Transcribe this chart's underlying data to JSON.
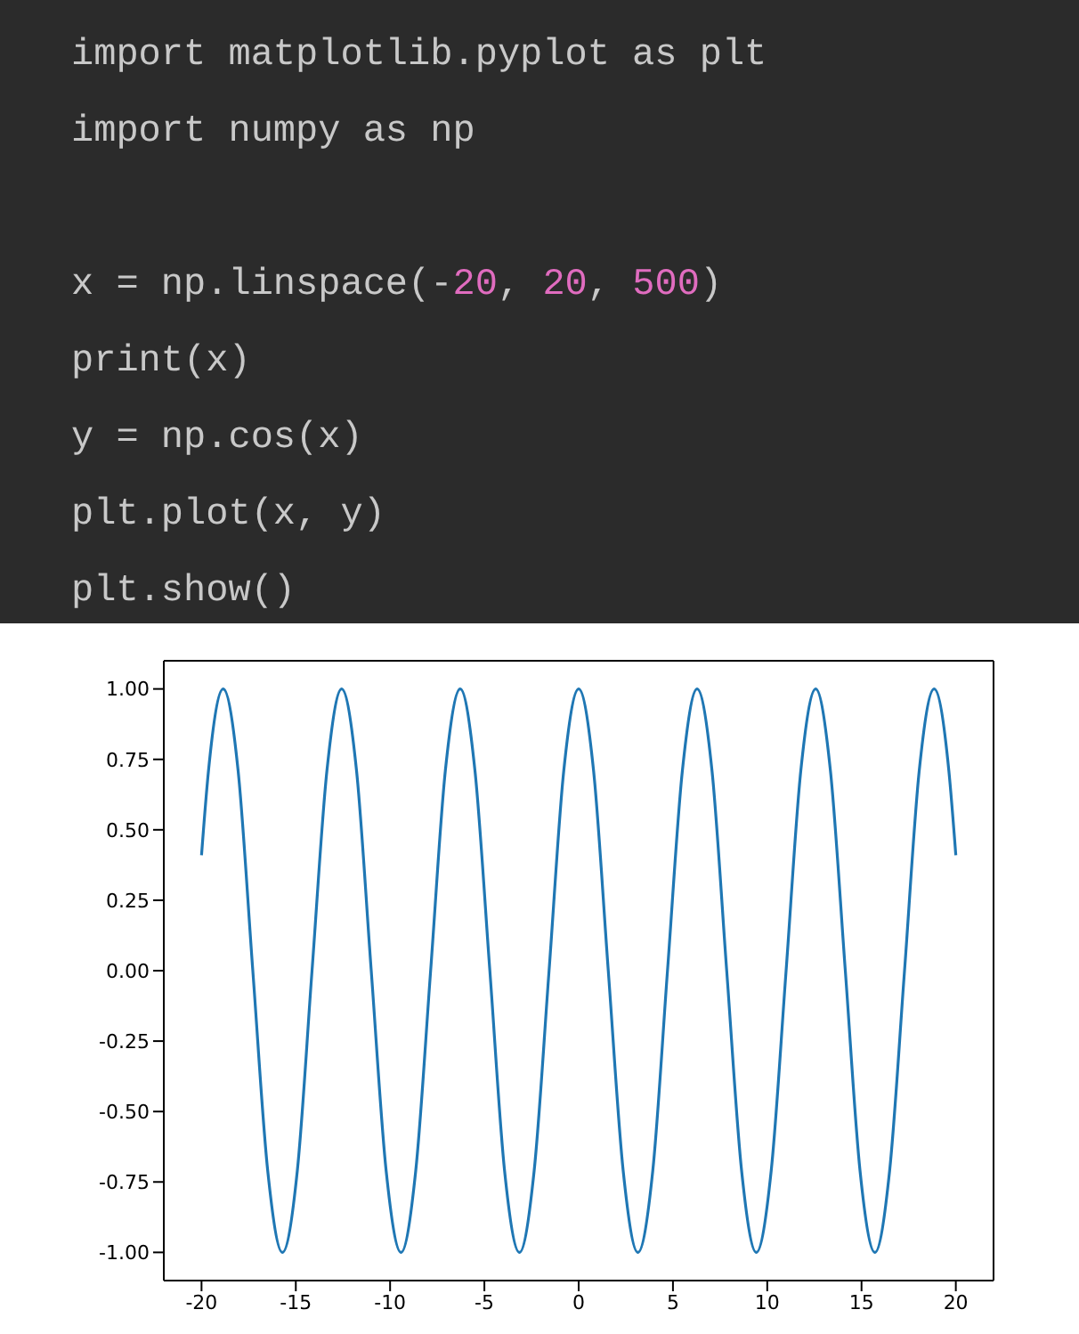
{
  "chart_data": {
    "type": "line",
    "annotations": [
      "import matplotlib.pyplot as plt",
      "import numpy as np",
      "x = np.linspace(-20, 20, 500)",
      "print(x)",
      "y = np.cos(x)",
      "plt.plot(x, y)",
      "plt.show()"
    ],
    "x": [
      -20,
      -19.63,
      -18.85,
      -18.06,
      -17.28,
      -16.49,
      -15.71,
      -14.92,
      -14.14,
      -13.35,
      -12.57,
      -11.78,
      -11.0,
      -10.21,
      -9.42,
      -8.64,
      -7.85,
      -7.07,
      -6.28,
      -5.5,
      -4.71,
      -3.93,
      -3.14,
      -2.36,
      -1.57,
      -0.79,
      0,
      0.79,
      1.57,
      2.36,
      3.14,
      3.93,
      4.71,
      5.5,
      6.28,
      7.07,
      7.85,
      8.64,
      9.42,
      10.21,
      11.0,
      11.78,
      12.57,
      13.35,
      14.14,
      14.92,
      15.71,
      16.49,
      17.28,
      18.06,
      18.85,
      19.63,
      20
    ],
    "series": [
      {
        "color": "#1f77b4",
        "values": [
          0.41,
          0.71,
          1,
          0.71,
          0,
          -0.71,
          -1,
          -0.71,
          0,
          0.71,
          1,
          0.71,
          0,
          -0.71,
          -1,
          -0.71,
          0,
          0.71,
          1,
          0.71,
          0,
          -0.71,
          -1,
          -0.71,
          0,
          0.71,
          1,
          0.71,
          0,
          -0.71,
          -1,
          -0.71,
          0,
          0.71,
          1,
          0.71,
          0,
          -0.71,
          -1,
          -0.71,
          0,
          0.71,
          1,
          0.71,
          0,
          -0.71,
          -1,
          -0.71,
          0,
          0.71,
          1,
          0.71,
          0.41
        ]
      }
    ],
    "xlim": [
      -22,
      22
    ],
    "xticks": [
      -20,
      -15,
      -10,
      -5,
      0,
      5,
      10,
      15,
      20
    ],
    "ylim": [
      -1.1,
      1.1
    ],
    "yticks": [
      {
        "value": -1,
        "label": "-1.00"
      },
      {
        "value": -0.75,
        "label": "-0.75"
      },
      {
        "value": -0.5,
        "label": "-0.50"
      },
      {
        "value": -0.25,
        "label": "-0.25"
      },
      {
        "value": 0,
        "label": "0.00"
      },
      {
        "value": 0.25,
        "label": "0.25"
      },
      {
        "value": 0.5,
        "label": "0.50"
      },
      {
        "value": 0.75,
        "label": "0.75"
      },
      {
        "value": 1,
        "label": "1.00"
      }
    ],
    "marker": "none",
    "line_style": "solid",
    "grid": false,
    "legend": false
  }
}
